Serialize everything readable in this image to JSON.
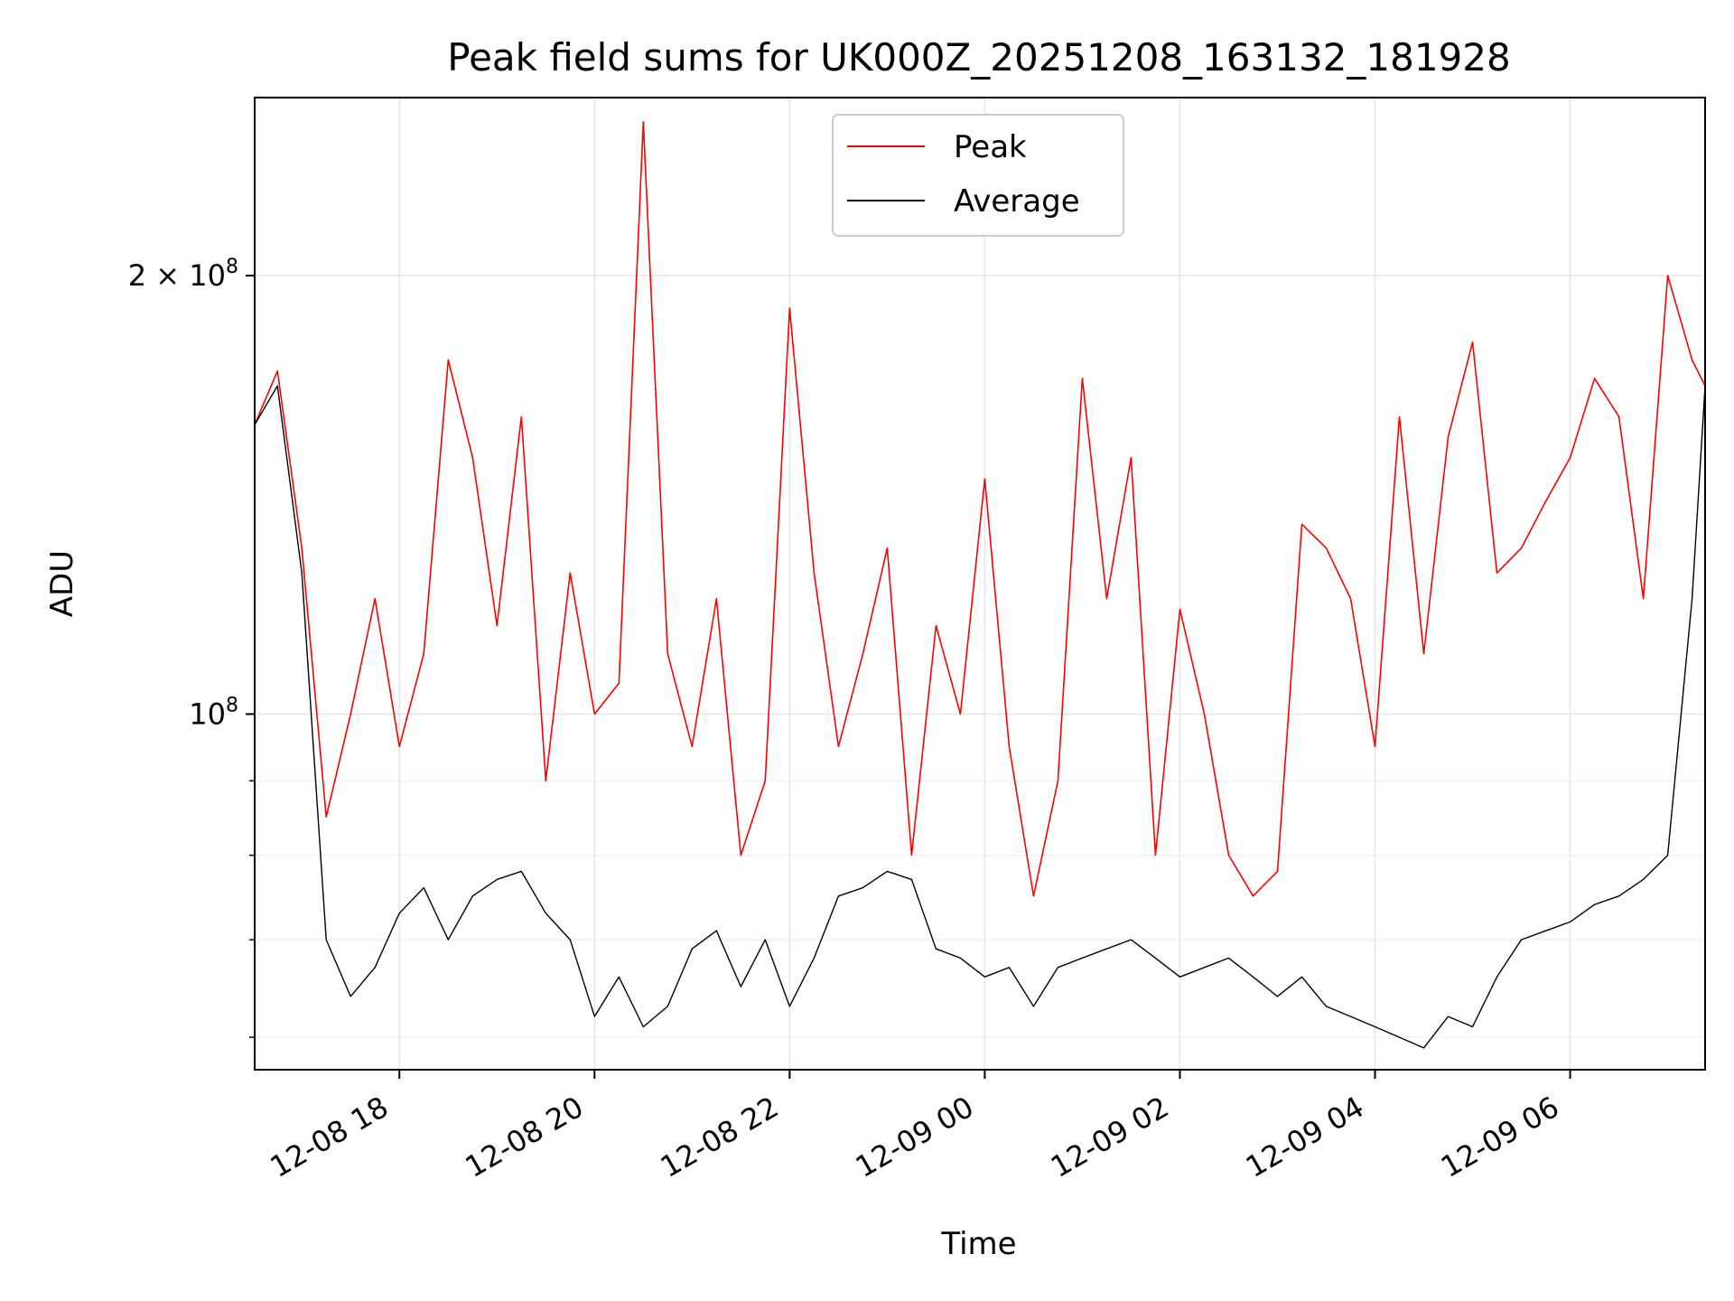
{
  "chart_data": {
    "type": "line",
    "title": "Peak field sums for UK000Z_20251208_163132_181928",
    "xlabel": "Time",
    "ylabel": "ADU",
    "y_scale": "log",
    "ylim": [
      57000000,
      265000000
    ],
    "xlim": [
      "2025-12-08 16:31",
      "2025-12-09 07:23"
    ],
    "x_ticks": [
      "12-08 18",
      "12-08 20",
      "12-08 22",
      "12-09 00",
      "12-09 02",
      "12-09 04",
      "12-09 06"
    ],
    "y_ticks": [
      {
        "value": 200000000,
        "label_base": "2 × 10",
        "label_exp": "8"
      },
      {
        "value": 100000000,
        "label_base": "10",
        "label_exp": "8"
      }
    ],
    "grid": true,
    "legend_position": "upper-center",
    "series": [
      {
        "name": "Peak",
        "color": "#ff0000",
        "x": [
          "2025-12-08 16:31",
          "2025-12-08 16:45",
          "2025-12-08 17:00",
          "2025-12-08 17:15",
          "2025-12-08 17:30",
          "2025-12-08 17:45",
          "2025-12-08 18:00",
          "2025-12-08 18:15",
          "2025-12-08 18:30",
          "2025-12-08 18:45",
          "2025-12-08 19:00",
          "2025-12-08 19:15",
          "2025-12-08 19:30",
          "2025-12-08 19:45",
          "2025-12-08 20:00",
          "2025-12-08 20:15",
          "2025-12-08 20:30",
          "2025-12-08 20:45",
          "2025-12-08 21:00",
          "2025-12-08 21:15",
          "2025-12-08 21:30",
          "2025-12-08 21:45",
          "2025-12-08 22:00",
          "2025-12-08 22:15",
          "2025-12-08 22:30",
          "2025-12-08 22:45",
          "2025-12-08 23:00",
          "2025-12-08 23:15",
          "2025-12-08 23:30",
          "2025-12-08 23:45",
          "2025-12-09 00:00",
          "2025-12-09 00:15",
          "2025-12-09 00:30",
          "2025-12-09 00:45",
          "2025-12-09 01:00",
          "2025-12-09 01:15",
          "2025-12-09 01:30",
          "2025-12-09 01:45",
          "2025-12-09 02:00",
          "2025-12-09 02:15",
          "2025-12-09 02:30",
          "2025-12-09 02:45",
          "2025-12-09 03:00",
          "2025-12-09 03:15",
          "2025-12-09 03:30",
          "2025-12-09 03:45",
          "2025-12-09 04:00",
          "2025-12-09 04:15",
          "2025-12-09 04:30",
          "2025-12-09 04:45",
          "2025-12-09 05:00",
          "2025-12-09 05:15",
          "2025-12-09 05:30",
          "2025-12-09 05:45",
          "2025-12-09 06:00",
          "2025-12-09 06:15",
          "2025-12-09 06:30",
          "2025-12-09 06:45",
          "2025-12-09 07:00",
          "2025-12-09 07:15",
          "2025-12-09 07:23"
        ],
        "values": [
          158000000,
          172000000,
          130000000,
          85000000,
          100000000,
          120000000,
          95000000,
          110000000,
          175000000,
          150000000,
          115000000,
          160000000,
          90000000,
          125000000,
          100000000,
          105000000,
          255000000,
          110000000,
          95000000,
          120000000,
          80000000,
          90000000,
          190000000,
          125000000,
          95000000,
          110000000,
          130000000,
          80000000,
          115000000,
          100000000,
          145000000,
          95000000,
          75000000,
          90000000,
          170000000,
          120000000,
          150000000,
          80000000,
          118000000,
          100000000,
          80000000,
          75000000,
          78000000,
          135000000,
          130000000,
          120000000,
          95000000,
          160000000,
          110000000,
          155000000,
          180000000,
          125000000,
          130000000,
          140000000,
          150000000,
          170000000,
          160000000,
          120000000,
          200000000,
          175000000,
          168000000
        ]
      },
      {
        "name": "Average",
        "color": "#000000",
        "x": [
          "2025-12-08 16:31",
          "2025-12-08 16:45",
          "2025-12-08 17:00",
          "2025-12-08 17:15",
          "2025-12-08 17:30",
          "2025-12-08 17:45",
          "2025-12-08 18:00",
          "2025-12-08 18:15",
          "2025-12-08 18:30",
          "2025-12-08 18:45",
          "2025-12-08 19:00",
          "2025-12-08 19:15",
          "2025-12-08 19:30",
          "2025-12-08 19:45",
          "2025-12-08 20:00",
          "2025-12-08 20:15",
          "2025-12-08 20:30",
          "2025-12-08 20:45",
          "2025-12-08 21:00",
          "2025-12-08 21:15",
          "2025-12-08 21:30",
          "2025-12-08 21:45",
          "2025-12-08 22:00",
          "2025-12-08 22:15",
          "2025-12-08 22:30",
          "2025-12-08 22:45",
          "2025-12-08 23:00",
          "2025-12-08 23:15",
          "2025-12-08 23:30",
          "2025-12-08 23:45",
          "2025-12-09 00:00",
          "2025-12-09 00:15",
          "2025-12-09 00:30",
          "2025-12-09 00:45",
          "2025-12-09 01:00",
          "2025-12-09 01:15",
          "2025-12-09 01:30",
          "2025-12-09 01:45",
          "2025-12-09 02:00",
          "2025-12-09 02:15",
          "2025-12-09 02:30",
          "2025-12-09 02:45",
          "2025-12-09 03:00",
          "2025-12-09 03:15",
          "2025-12-09 03:30",
          "2025-12-09 03:45",
          "2025-12-09 04:00",
          "2025-12-09 04:15",
          "2025-12-09 04:30",
          "2025-12-09 04:45",
          "2025-12-09 05:00",
          "2025-12-09 05:15",
          "2025-12-09 05:30",
          "2025-12-09 05:45",
          "2025-12-09 06:00",
          "2025-12-09 06:15",
          "2025-12-09 06:30",
          "2025-12-09 06:45",
          "2025-12-09 07:00",
          "2025-12-09 07:15",
          "2025-12-09 07:23"
        ],
        "values": [
          158000000,
          168000000,
          125000000,
          70000000,
          64000000,
          67000000,
          73000000,
          76000000,
          70000000,
          75000000,
          77000000,
          78000000,
          73000000,
          70000000,
          62000000,
          66000000,
          61000000,
          63000000,
          69000000,
          71000000,
          65000000,
          70000000,
          63000000,
          68000000,
          75000000,
          76000000,
          78000000,
          77000000,
          69000000,
          68000000,
          66000000,
          67000000,
          63000000,
          67000000,
          68000000,
          69000000,
          70000000,
          68000000,
          66000000,
          67000000,
          68000000,
          66000000,
          64000000,
          66000000,
          63000000,
          62000000,
          61000000,
          60000000,
          59000000,
          62000000,
          61000000,
          66000000,
          70000000,
          71000000,
          72000000,
          74000000,
          75000000,
          77000000,
          80000000,
          120000000,
          168000000
        ]
      }
    ]
  }
}
